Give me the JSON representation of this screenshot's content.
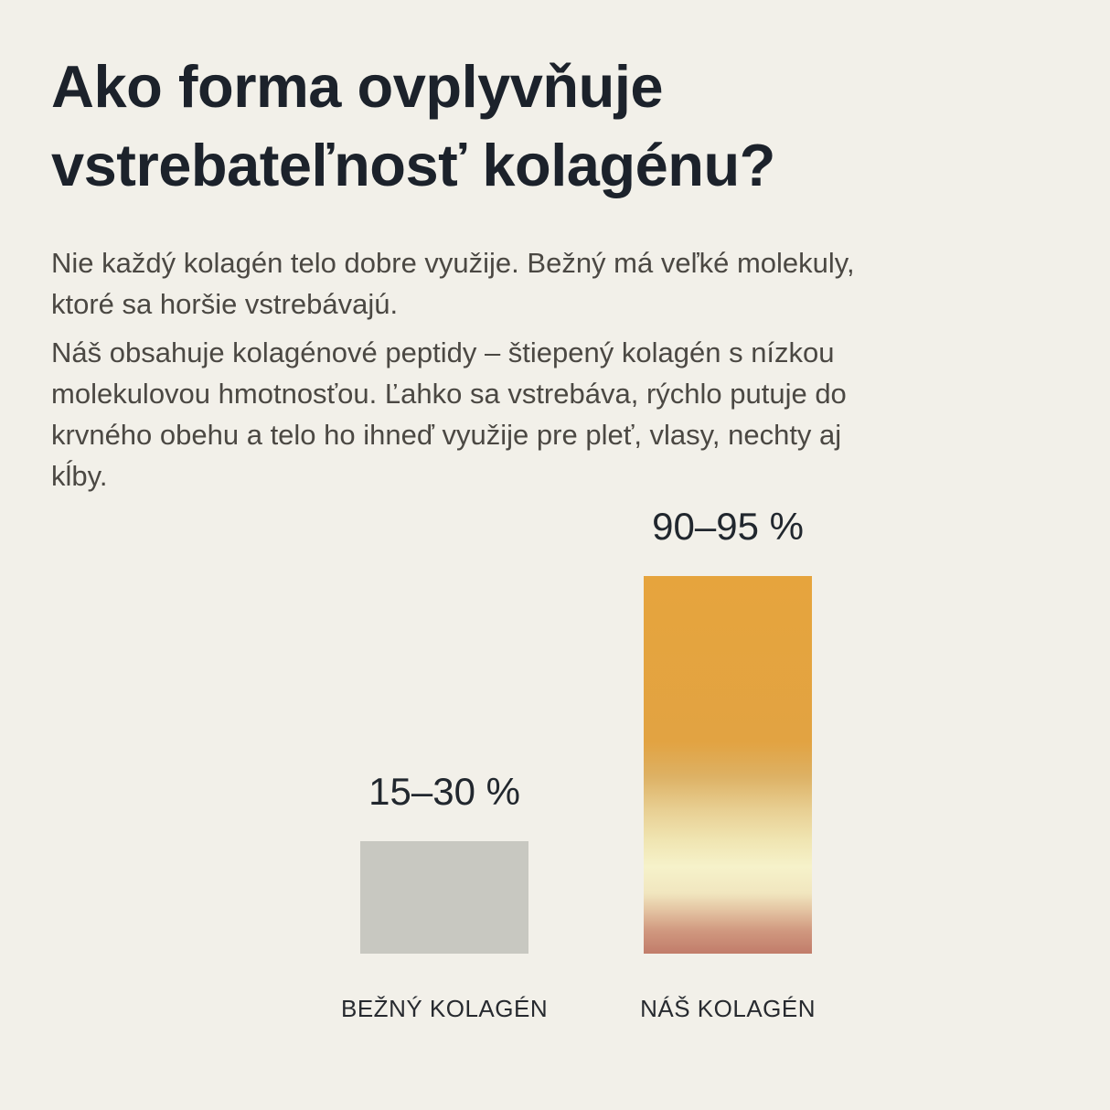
{
  "page": {
    "background": "#f2f0e9",
    "title": "Ako forma ovplyvňuje\nvstrebateľnosť kolagénu?",
    "title_color": "#1c222b",
    "text_color": "#4b4843",
    "paragraphs": {
      "p1": "Nie každý kolagén telo dobre využije. Bežný má veľké molekuly,\nktoré sa horšie vstrebávajú.",
      "p2": "Náš obsahuje kolagénové peptidy – štiepený kolagén s nízkou\nmolekulovou hmotnosťou. Ľahko sa vstrebáva, rýchlo putuje do\nkrvného obehu a telo ho ihneď využije pre pleť, vlasy, nechty aj\nkĺby."
    }
  },
  "chart_data": {
    "type": "bar",
    "title": "",
    "xlabel": "",
    "ylabel": "",
    "unit": "%",
    "ylim": [
      0,
      100
    ],
    "grid": false,
    "legend": false,
    "categories": [
      "BEŽNÝ KOLAGÉN",
      "NÁŠ KOLAGÉN"
    ],
    "value_labels": [
      "15–30 %",
      "90–95 %"
    ],
    "value_ranges": [
      [
        15,
        30
      ],
      [
        90,
        95
      ]
    ],
    "values": [
      27.5,
      92.5
    ],
    "label_color": "#21272e",
    "bar_fills": [
      {
        "type": "solid",
        "color": "#c8c8c1"
      },
      {
        "type": "gradient",
        "stops": [
          [
            "#e6a43d",
            "0%"
          ],
          [
            "#e2a342",
            "44%"
          ],
          [
            "#ddb164",
            "53%"
          ],
          [
            "#e8cf93",
            "62%"
          ],
          [
            "#f0e5b2",
            "70%"
          ],
          [
            "#f6f2ca",
            "77%"
          ],
          [
            "#f1e6bf",
            "84%"
          ],
          [
            "#e2c09f",
            "89%"
          ],
          [
            "#d0987f",
            "94%"
          ],
          [
            "#c17c6a",
            "100%"
          ]
        ]
      }
    ]
  }
}
